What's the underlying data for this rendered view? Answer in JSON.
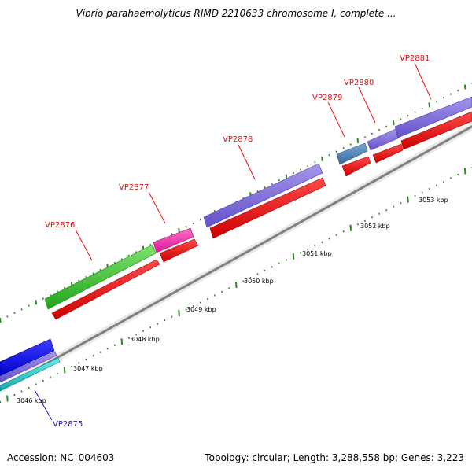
{
  "title": "Vibrio parahaemolyticus RIMD 2210633 chromosome I, complete ...",
  "footer": {
    "accession": "Accession: NC_004603",
    "summary": "Topology: circular; Length: 3,288,558 bp; Genes: 3,223"
  },
  "colors": {
    "backbone": "#888888",
    "tick": "#2a8a1e",
    "cds": "#ee1111",
    "label_red": "#dd1111",
    "label_blue": "#1111cc"
  },
  "scale_labels": [
    "3046 kbp",
    "3047 kbp",
    "3048 kbp",
    "3049 kbp",
    "3050 kbp",
    "3051 kbp",
    "3052 kbp",
    "3053 kbp"
  ],
  "genes": [
    {
      "name": "VP2875",
      "color": "#1111cc"
    },
    {
      "name": "VP2876",
      "color": "#dd1111"
    },
    {
      "name": "VP2877",
      "color": "#dd1111"
    },
    {
      "name": "VP2878",
      "color": "#dd1111"
    },
    {
      "name": "VP2879",
      "color": "#dd1111"
    },
    {
      "name": "VP2880",
      "color": "#dd1111"
    },
    {
      "name": "VP2881",
      "color": "#dd1111"
    }
  ]
}
